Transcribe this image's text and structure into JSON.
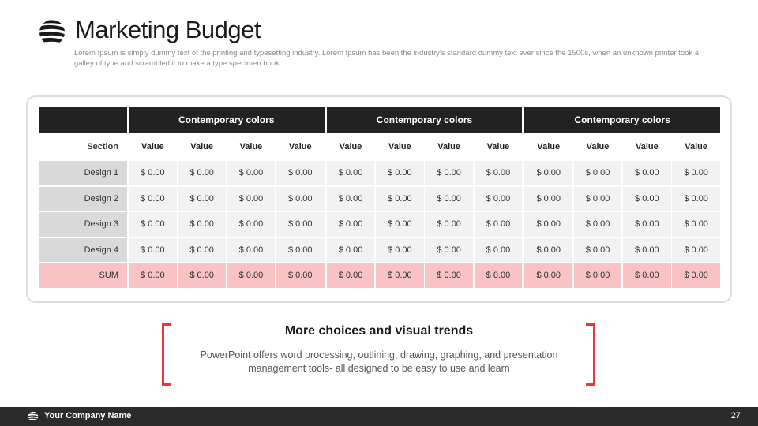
{
  "header": {
    "title": "Marketing Budget",
    "subtitle": "Lorem Ipsum is simply dummy text of the printing and typesetting industry. Lorem Ipsum has been the industry's standard dummy text ever since the 1500s, when an unknown printer took a galley of type and scrambled it to make a type specimen book."
  },
  "table": {
    "group_headers": [
      "Contemporary colors",
      "Contemporary colors",
      "Contemporary colors"
    ],
    "section_label": "Section",
    "column_label": "Value",
    "rows": [
      {
        "label": "Design 1",
        "values": [
          "$ 0.00",
          "$ 0.00",
          "$ 0.00",
          "$ 0.00",
          "$ 0.00",
          "$ 0.00",
          "$ 0.00",
          "$ 0.00",
          "$ 0.00",
          "$ 0.00",
          "$ 0.00",
          "$ 0.00"
        ]
      },
      {
        "label": "Design 2",
        "values": [
          "$ 0.00",
          "$ 0.00",
          "$ 0.00",
          "$ 0.00",
          "$ 0.00",
          "$ 0.00",
          "$ 0.00",
          "$ 0.00",
          "$ 0.00",
          "$ 0.00",
          "$ 0.00",
          "$ 0.00"
        ]
      },
      {
        "label": "Design 3",
        "values": [
          "$ 0.00",
          "$ 0.00",
          "$ 0.00",
          "$ 0.00",
          "$ 0.00",
          "$ 0.00",
          "$ 0.00",
          "$ 0.00",
          "$ 0.00",
          "$ 0.00",
          "$ 0.00",
          "$ 0.00"
        ]
      },
      {
        "label": "Design 4",
        "values": [
          "$ 0.00",
          "$ 0.00",
          "$ 0.00",
          "$ 0.00",
          "$ 0.00",
          "$ 0.00",
          "$ 0.00",
          "$ 0.00",
          "$ 0.00",
          "$ 0.00",
          "$ 0.00",
          "$ 0.00"
        ]
      }
    ],
    "sum_row": {
      "label": "SUM",
      "values": [
        "$ 0.00",
        "$ 0.00",
        "$ 0.00",
        "$ 0.00",
        "$ 0.00",
        "$ 0.00",
        "$ 0.00",
        "$ 0.00",
        "$ 0.00",
        "$ 0.00",
        "$ 0.00",
        "$ 0.00"
      ]
    }
  },
  "callout": {
    "title": "More choices and visual trends",
    "text": "PowerPoint offers word processing, outlining, drawing, graphing, and presentation management tools- all designed to be easy to use and learn"
  },
  "footer": {
    "company": "Your Company Name",
    "page_number": "27"
  },
  "colors": {
    "header_dark": "#222222",
    "accent_red": "#e8363f",
    "sum_pink": "#f9c3c3",
    "cell_gray": "#f2f2f2",
    "label_gray": "#d9d9d9"
  },
  "icons": {
    "logo": "globe-stripes-icon",
    "footer_logo": "globe-stripes-icon"
  }
}
